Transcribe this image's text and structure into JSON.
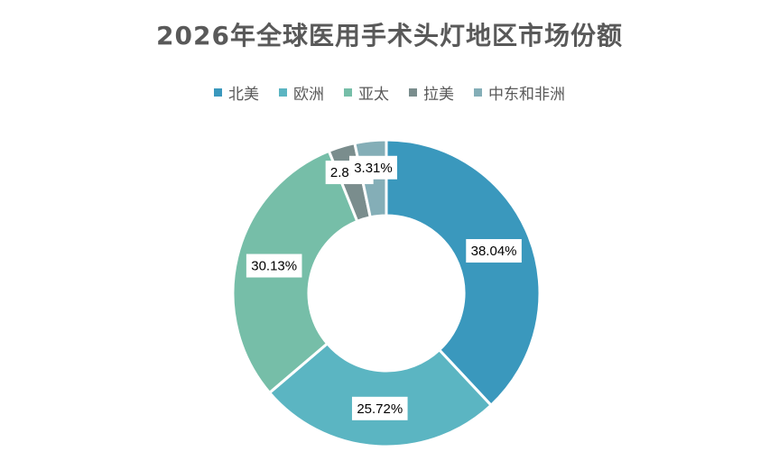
{
  "chart_data": {
    "type": "pie",
    "variant": "donut",
    "title": "2026年全球医用手术头灯地区市场份额",
    "categories": [
      "北美",
      "欧洲",
      "亚太",
      "拉美",
      "中东和非洲"
    ],
    "values": [
      38.04,
      25.72,
      30.13,
      2.8,
      3.31
    ],
    "value_labels": [
      "38.04%",
      "25.72%",
      "30.13%",
      "2.80%",
      "3.31%"
    ],
    "colors": [
      "#3A98BD",
      "#5BB5C2",
      "#76BEA8",
      "#7A8D8D",
      "#84AEB7"
    ],
    "legend_position": "top"
  }
}
